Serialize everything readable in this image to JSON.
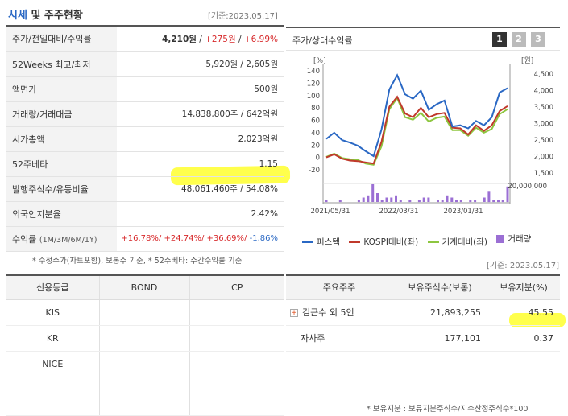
{
  "header": {
    "title_highlight": "시세",
    "title_rest": " 및 주주현황",
    "date": "[기준:2023.05.17]"
  },
  "quote_rows": [
    {
      "label": "주가/전일대비/수익률"
    },
    {
      "label": "52Weeks 최고/최저",
      "value": "5,920원 / 2,605원"
    },
    {
      "label": "액면가",
      "value": "500원"
    },
    {
      "label": "거래량/거래대금",
      "value": "14,838,800주 / 642억원"
    },
    {
      "label": "시가총액",
      "value": "2,023억원"
    },
    {
      "label": "52주베타",
      "value": "1.15"
    },
    {
      "label": "발행주식수/유동비율",
      "value": "48,061,460주 / 54.08%"
    },
    {
      "label": "외국인지분율",
      "value": "2.42%"
    },
    {
      "label": "수익률",
      "sub": "(1M/3M/6M/1Y)"
    }
  ],
  "price": {
    "price": "4,210원",
    "sep": " / ",
    "change": "+275원",
    "rate": "+6.99%"
  },
  "returns": {
    "r1": "+16.78%/",
    "r2": "+24.74%/",
    "r3": "+36.69%/",
    "r4": "-1.86%"
  },
  "note_left": "* 수정주가(차트포함), 보통주 기준, * 52주베타: 주간수익률 기준",
  "chart_panel": {
    "title": "주가/상대수익률",
    "tabs": [
      "1",
      "2",
      "3"
    ]
  },
  "chart_data": {
    "type": "line",
    "x_ticks": [
      "2021/05/31",
      "2022/03/31",
      "2023/01/31"
    ],
    "left_axis_unit": "[%]",
    "right_axis_unit": "[원]",
    "left_ticks": [
      "140",
      "120",
      "100",
      "80",
      "60",
      "40",
      "20",
      "0",
      "-20"
    ],
    "right_ticks": [
      "4,500",
      "4,000",
      "3,500",
      "3,000",
      "2,500",
      "2,000",
      "1,500"
    ],
    "volume_tick": "20,000,000",
    "ylim_left": [
      -20,
      140
    ],
    "series": [
      {
        "name": "퍼스텍",
        "color": "#2a68c4",
        "values": [
          30,
          40,
          28,
          24,
          19,
          10,
          2,
          45,
          110,
          133,
          102,
          95,
          108,
          77,
          86,
          92,
          50,
          52,
          47,
          59,
          52,
          65,
          105,
          112
        ]
      },
      {
        "name": "KOSPI대비(좌)",
        "color": "#c0392b",
        "values": [
          0,
          5,
          -2,
          -5,
          -6,
          -8,
          -10,
          25,
          82,
          98,
          71,
          65,
          80,
          65,
          70,
          72,
          48,
          47,
          37,
          52,
          43,
          52,
          75,
          83
        ]
      },
      {
        "name": "기계대비(좌)",
        "color": "#8dc63f",
        "values": [
          1,
          6,
          -1,
          -3,
          -4,
          -10,
          -12,
          18,
          78,
          96,
          65,
          61,
          72,
          58,
          64,
          66,
          44,
          44,
          35,
          48,
          40,
          46,
          70,
          78
        ]
      }
    ],
    "volume": {
      "name": "거래량",
      "color": "#9b6fd4",
      "values": [
        1,
        0,
        0,
        1,
        0,
        0,
        0,
        1,
        2,
        3,
        8,
        4,
        1,
        2,
        2,
        3,
        1,
        0,
        1,
        0,
        1,
        2,
        2,
        0,
        1,
        1,
        3,
        2,
        1,
        1,
        0,
        1,
        1,
        0,
        2,
        5,
        1,
        1,
        1,
        7
      ]
    }
  },
  "date2": "[기준: 2023.05.17]",
  "credit": {
    "headers": [
      "신용등급",
      "BOND",
      "CP"
    ],
    "rows": [
      [
        "KIS",
        "",
        ""
      ],
      [
        "KR",
        "",
        ""
      ],
      [
        "NICE",
        "",
        ""
      ]
    ]
  },
  "holders": {
    "headers": [
      "주요주주",
      "보유주식수(보통)",
      "보유지분(%)"
    ],
    "rows": [
      {
        "name": "김근수 외 5인",
        "shares": "21,893,255",
        "pct": "45.55",
        "expand": "+"
      },
      {
        "name": "자사주",
        "shares": "177,101",
        "pct": "0.37"
      }
    ]
  },
  "note_right": "* 보유지분 : 보유지분주식수/지수산정주식수*100",
  "colors": {
    "accent_blue": "#2a68c4",
    "up_red": "#d7282a",
    "highlight": "#ffff00"
  }
}
